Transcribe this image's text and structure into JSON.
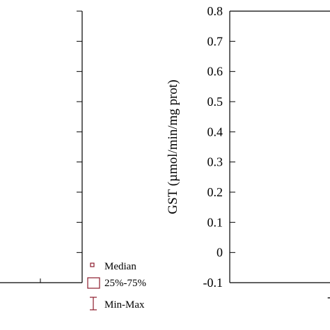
{
  "chart_data": [
    {
      "type": "box",
      "note": "left panel, cropped; only frame and tick marks visible",
      "ylabel": "",
      "y_ticks": [],
      "series": []
    },
    {
      "type": "box",
      "ylabel": "GST (µmol/min/mg prot)",
      "ylim": [
        -0.1,
        0.8
      ],
      "y_ticks": [
        -0.1,
        0,
        0.1,
        0.2,
        0.3,
        0.4,
        0.5,
        0.6,
        0.7,
        0.8
      ],
      "y_tick_labels": [
        "-0.1",
        "0",
        "0.1",
        "0.2",
        "0.3",
        "0.4",
        "0.5",
        "0.6",
        "0.7",
        "0.8"
      ],
      "series": []
    }
  ],
  "legend": {
    "items": [
      {
        "symbol": "median-marker",
        "label": "Median"
      },
      {
        "symbol": "box",
        "label": "25%-75%"
      },
      {
        "symbol": "whisker",
        "label": "Min-Max"
      }
    ]
  },
  "colors": {
    "axis": "#000000",
    "legend_symbol": "#8b1a2b",
    "background": "#ffffff"
  }
}
